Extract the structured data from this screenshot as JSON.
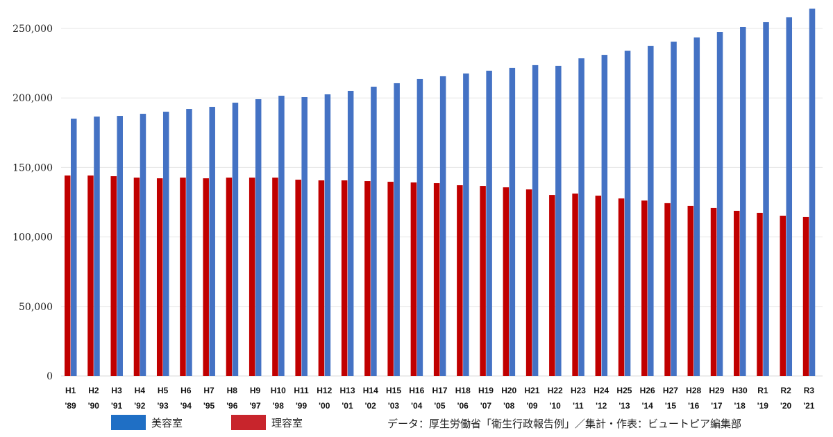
{
  "chart_data": {
    "type": "bar",
    "title": "",
    "xlabel": "",
    "ylabel": "",
    "ylim": [
      0,
      265000
    ],
    "yticks": [
      0,
      50000,
      100000,
      150000,
      200000,
      250000
    ],
    "ytick_labels": [
      "0",
      "50,000",
      "100,000",
      "150,000",
      "200,000",
      "250,000"
    ],
    "grid": true,
    "categories": [
      "H1",
      "H2",
      "H3",
      "H4",
      "H5",
      "H6",
      "H7",
      "H8",
      "H9",
      "H10",
      "H11",
      "H12",
      "H13",
      "H14",
      "H15",
      "H16",
      "H17",
      "H18",
      "H19",
      "H20",
      "H21",
      "H22",
      "H23",
      "H24",
      "H25",
      "H26",
      "H27",
      "H28",
      "H29",
      "H30",
      "R1",
      "R2",
      "R3"
    ],
    "categories_year": [
      "'89",
      "'90",
      "'91",
      "'92",
      "'93",
      "'94",
      "'95",
      "'96",
      "'97",
      "'98",
      "'99",
      "'00",
      "'01",
      "'02",
      "'03",
      "'04",
      "'05",
      "'06",
      "'07",
      "'08",
      "'09",
      "'10",
      "'11",
      "'12",
      "'13",
      "'14",
      "'15",
      "'16",
      "'17",
      "'18",
      "'19",
      "'20",
      "'21"
    ],
    "series": [
      {
        "name": "理容室",
        "color": "#c00000",
        "values": [
          144200,
          144200,
          143700,
          142700,
          142200,
          142700,
          142200,
          142700,
          142700,
          142700,
          141200,
          140700,
          140700,
          140200,
          139700,
          139200,
          138700,
          137200,
          136700,
          135700,
          134200,
          130200,
          131200,
          129700,
          127700,
          126200,
          124300,
          122300,
          120800,
          118800,
          117300,
          115300,
          114300
        ]
      },
      {
        "name": "美容室",
        "color": "#4472c4",
        "values": [
          185100,
          186600,
          187100,
          188600,
          190100,
          192100,
          193600,
          196600,
          199100,
          201600,
          200600,
          202600,
          205100,
          208100,
          210600,
          213600,
          215600,
          217600,
          219600,
          221600,
          223600,
          223100,
          228500,
          231000,
          234000,
          237500,
          240500,
          243500,
          247500,
          251000,
          254500,
          258000,
          264200
        ]
      }
    ],
    "legend": {
      "placement": "bottom",
      "items": [
        {
          "label": "美容室",
          "color": "#1f6fc5"
        },
        {
          "label": "理容室",
          "color": "#c8252c"
        }
      ]
    },
    "source": "データ：厚生労働省「衛生行政報告例」／集計・作表：ビュートピア編集部"
  }
}
